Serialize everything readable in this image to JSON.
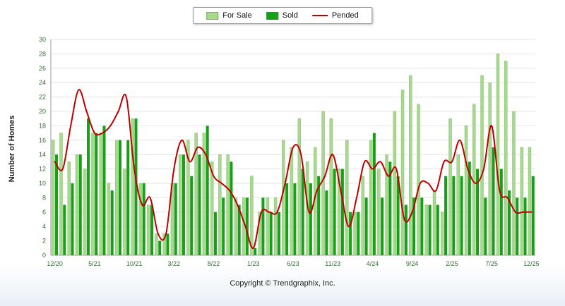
{
  "legend": {
    "for_sale": "For Sale",
    "sold": "Sold",
    "pended": "Pended"
  },
  "ylabel": "Number of Homes",
  "footer": "Copyright © Trendgraphix, Inc.",
  "colors": {
    "for_sale": "#a9d88f",
    "for_sale_border": "#76b75f",
    "sold": "#17a017",
    "pended": "#c00000",
    "grid": "#e4e4e4",
    "axis": "#9a9a9a",
    "tick_text": "#356d35"
  },
  "chart_data": {
    "type": "bar",
    "title": "",
    "xlabel": "",
    "ylabel": "Number of Homes",
    "ylim": [
      0,
      30
    ],
    "ytick_step": 2,
    "xtick_every": 5,
    "grid": true,
    "legend_position": "top-center",
    "xtick_labels": [
      "12/20",
      "5/21",
      "10/21",
      "3/22",
      "8/22",
      "1/23",
      "6/23",
      "11/23",
      "4/24",
      "9/24",
      "2/25",
      "7/25",
      "12/25"
    ],
    "categories": [
      "12/20",
      "1/21",
      "2/21",
      "3/21",
      "4/21",
      "5/21",
      "6/21",
      "7/21",
      "8/21",
      "9/21",
      "10/21",
      "11/21",
      "12/21",
      "1/22",
      "2/22",
      "3/22",
      "4/22",
      "5/22",
      "6/22",
      "7/22",
      "8/22",
      "9/22",
      "10/22",
      "11/22",
      "12/22",
      "1/23",
      "2/23",
      "3/23",
      "4/23",
      "5/23",
      "6/23",
      "7/23",
      "8/23",
      "9/23",
      "10/23",
      "11/23",
      "12/23",
      "1/24",
      "2/24",
      "3/24",
      "4/24",
      "5/24",
      "6/24",
      "7/24",
      "8/24",
      "9/24",
      "10/24",
      "11/24",
      "12/24",
      "1/25",
      "2/25",
      "3/25",
      "4/25",
      "5/25",
      "6/25",
      "7/25",
      "8/25",
      "9/25",
      "10/25",
      "11/25",
      "12/25"
    ],
    "series": [
      {
        "name": "For Sale",
        "values": [
          16,
          17,
          13,
          14,
          12,
          17,
          17,
          10,
          16,
          12,
          19,
          10,
          7,
          3,
          3,
          10,
          14,
          16,
          17,
          17,
          13,
          14,
          14,
          8,
          8,
          11,
          6,
          8,
          8,
          16,
          15,
          19,
          13,
          15,
          20,
          19,
          12,
          16,
          6,
          11,
          16,
          12,
          14,
          20,
          23,
          25,
          21,
          7,
          9,
          6,
          19,
          14,
          18,
          21,
          25,
          24,
          28,
          27,
          20,
          15,
          15
        ]
      },
      {
        "name": "Sold",
        "values": [
          14,
          7,
          10,
          14,
          19,
          17,
          18,
          9,
          16,
          16,
          19,
          10,
          7,
          2,
          3,
          10,
          14,
          11,
          14,
          18,
          6,
          8,
          13,
          7,
          8,
          1,
          8,
          6,
          6,
          10,
          10,
          12,
          10,
          11,
          9,
          12,
          12,
          6,
          6,
          8,
          17,
          8,
          13,
          11,
          7,
          8,
          8,
          7,
          7,
          11,
          11,
          11,
          13,
          12,
          8,
          15,
          12,
          9,
          8,
          8,
          11
        ]
      }
    ],
    "line_series": {
      "name": "Pended",
      "values": [
        13,
        12,
        18,
        23,
        20,
        17,
        17,
        18,
        20,
        22,
        12,
        7,
        8,
        3,
        3,
        12,
        16,
        13,
        15,
        14,
        11,
        10,
        9,
        7,
        4,
        1,
        6,
        6,
        6,
        10,
        15,
        14,
        6,
        9,
        11,
        14,
        9,
        4,
        8,
        13,
        12,
        13,
        11,
        12,
        5,
        6,
        10,
        10,
        9,
        13,
        13,
        16,
        12,
        10,
        12,
        18,
        9,
        8,
        6,
        6,
        6
      ]
    }
  }
}
